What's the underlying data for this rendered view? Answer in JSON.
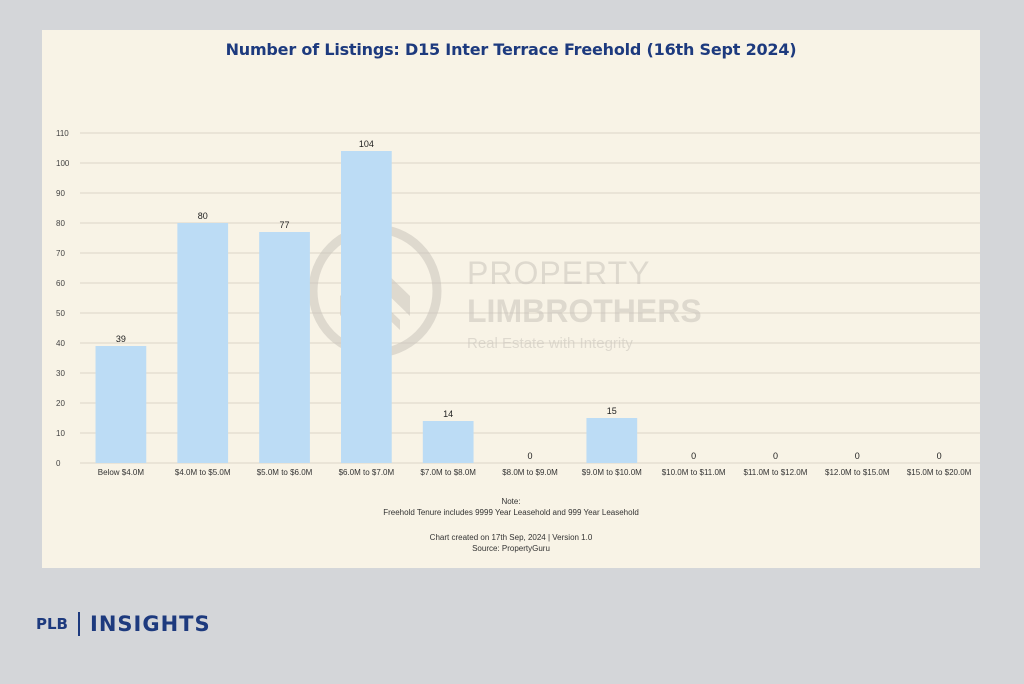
{
  "chart_data": {
    "type": "bar",
    "title": "Number of Listings: D15 Inter Terrace Freehold (16th Sept 2024)",
    "xlabel": "",
    "ylabel": "",
    "ylim": [
      0,
      110
    ],
    "yticks": [
      0,
      10,
      20,
      30,
      40,
      50,
      60,
      70,
      80,
      90,
      100,
      110
    ],
    "grid": true,
    "categories": [
      "Below $4.0M",
      "$4.0M to $5.0M",
      "$5.0M to $6.0M",
      "$6.0M to $7.0M",
      "$7.0M to $8.0M",
      "$8.0M to $9.0M",
      "$9.0M to $10.0M",
      "$10.0M to $11.0M",
      "$11.0M to $12.0M",
      "$12.0M to $15.0M",
      "$15.0M to $20.0M"
    ],
    "values": [
      39,
      80,
      77,
      104,
      14,
      0,
      15,
      0,
      0,
      0,
      0
    ],
    "bar_color": "#bcdcf5"
  },
  "watermark": {
    "line1": "PROPERTY",
    "line2": "LIMBROTHERS",
    "line3": "Real Estate with Integrity"
  },
  "notes": {
    "heading": "Note:",
    "text": "Freehold Tenure includes 9999 Year Leasehold and 999 Year Leasehold",
    "created": "Chart created on 17th Sep, 2024 | Version 1.0",
    "source": "Source: PropertyGuru"
  },
  "brand": {
    "plb": "PLB",
    "insights": "INSIGHTS",
    "color": "#1d3a7e"
  }
}
